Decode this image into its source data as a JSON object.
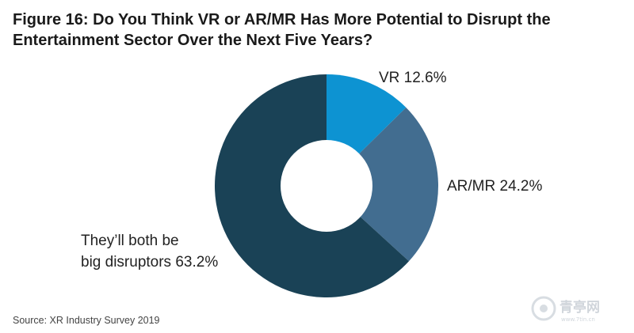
{
  "header": {
    "title": "Figure 16: Do You Think VR or AR/MR Has More Potential to Disrupt the Entertainment Sector Over the Next Five Years?"
  },
  "chart_data": {
    "type": "pie",
    "donut": true,
    "title": "Figure 16: Do You Think VR or AR/MR Has More Potential to Disrupt the Entertainment Sector Over the Next Five Years?",
    "slices": [
      {
        "label": "VR",
        "value": 12.6,
        "display": "VR 12.6%",
        "color": "#0d93d2"
      },
      {
        "label": "AR/MR",
        "value": 24.2,
        "display": "AR/MR 24.2%",
        "color": "#426d90"
      },
      {
        "label": "They'll both be big disruptors",
        "value": 63.2,
        "display_lines": [
          "They’ll both be",
          "big disruptors 63.2%"
        ],
        "color": "#1a4256"
      }
    ],
    "legend": "none"
  },
  "footer": {
    "source": "Source: XR Industry Survey 2019"
  },
  "watermark": {
    "text": "青亭网",
    "subtext": "www.7tin.cn"
  }
}
